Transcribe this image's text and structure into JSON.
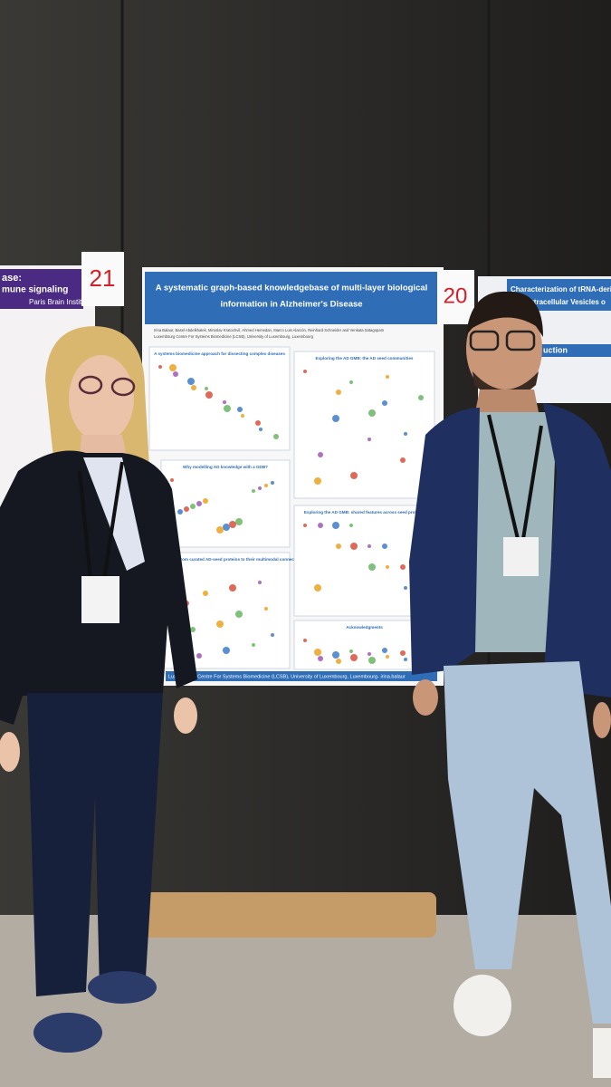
{
  "posters": {
    "left": {
      "number": "21",
      "lines": [
        "ase:",
        "mune signaling"
      ],
      "institute": "Paris Brain Institute"
    },
    "center": {
      "number": "20",
      "title": [
        "A systematic graph-based knowledgebase of multi-layer biological",
        "information in Alzheimer's Disease"
      ],
      "authors": "Irina Balaur, Basel Abdelkhalek, Miroslav Kratochvil, Ahmed Hemedan, Marco Luis Alarcón, Reinhard Schneider and Venkata Satagopam",
      "affiliation": "Luxembourg Centre For Systems Biomedicine (LCSB), University of Luxembourg, Luxembourg",
      "sections": [
        "A systems biomedicine approach for dissecting complex diseases",
        "Why modelling AD knowledge with a GDB?",
        "AD Seeds GDB: from curated AD-seed proteins to their multimodal connections",
        "Exploring the AD GMB: the AD seed communities",
        "Exploring the AD GMB: shared features across seed proteins",
        "Acknowledgments"
      ],
      "footer": "Luxembourg Centre For Systems Biomedicine (LCSB), University of Luxembourg, Luxembourg- irina.balaur"
    },
    "right": {
      "title": [
        "Characterization of tRNA-deriv",
        "Extracellular Vesicles o"
      ],
      "section": "uction"
    }
  }
}
